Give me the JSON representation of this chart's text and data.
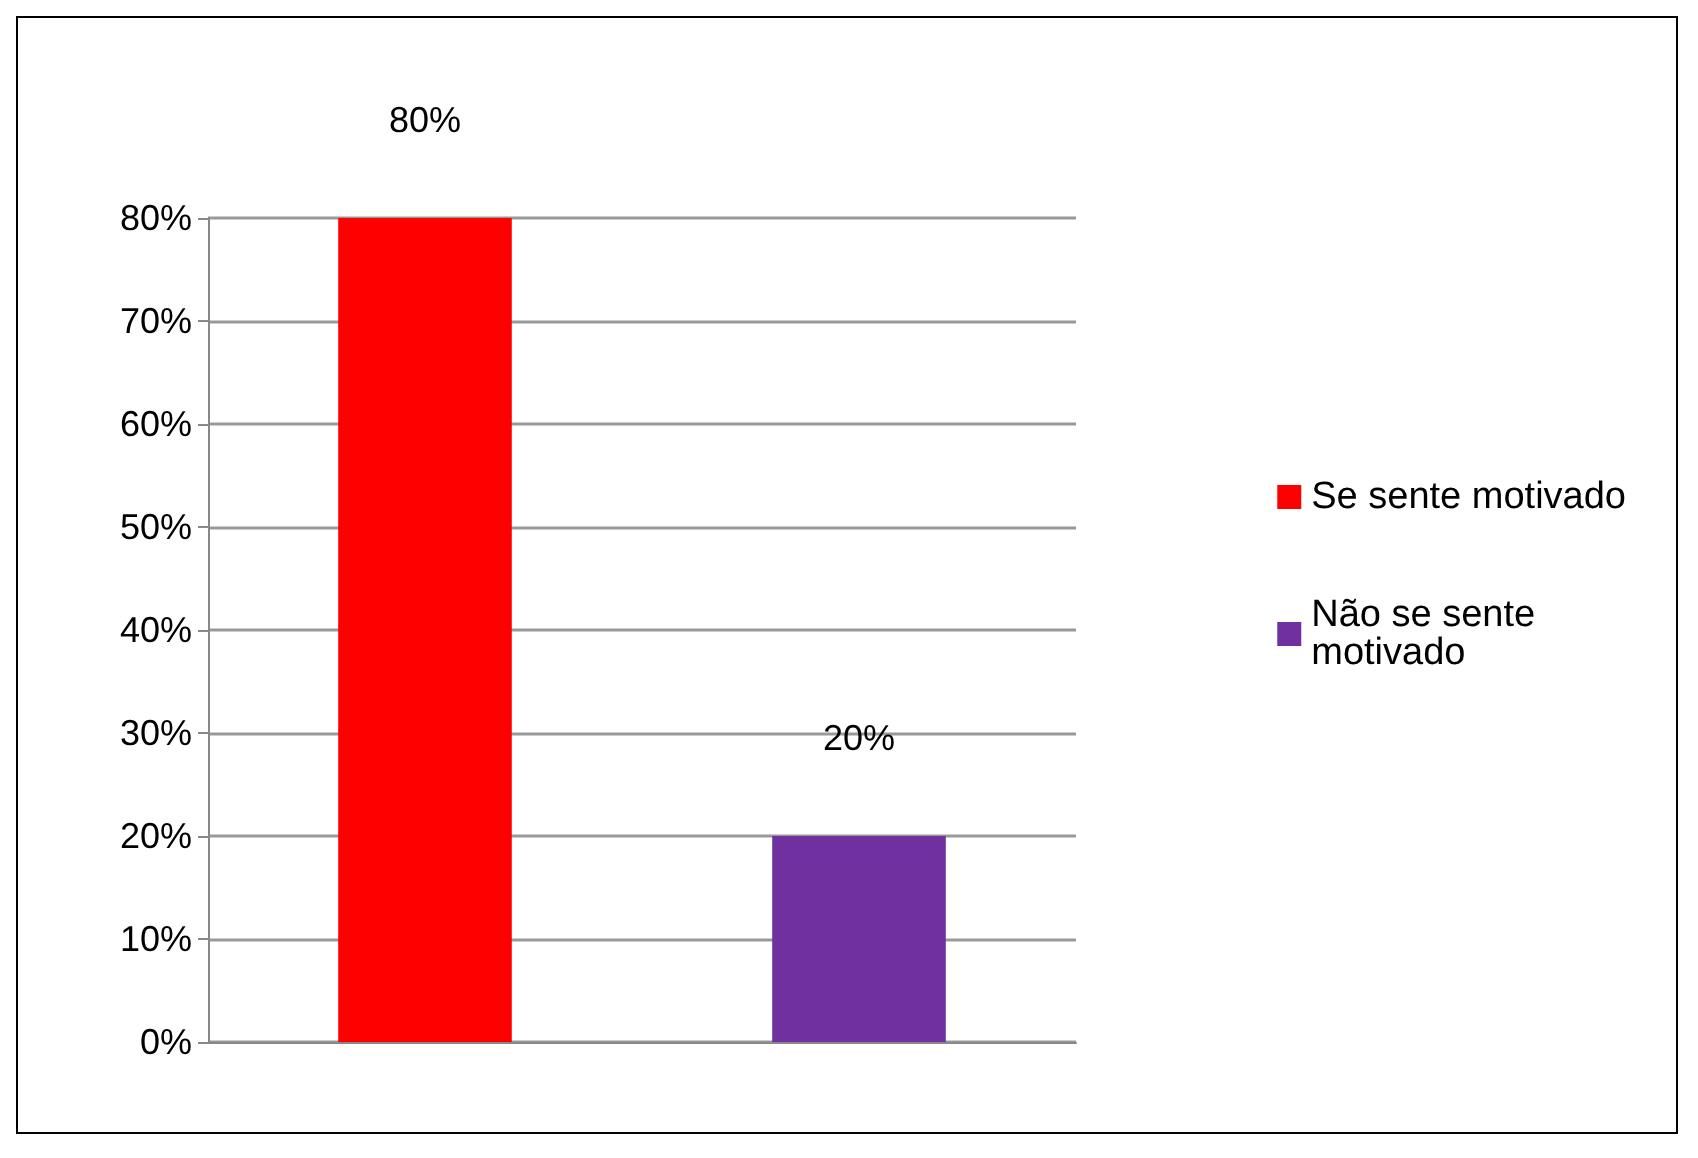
{
  "chart_data": {
    "type": "bar",
    "categories": [
      null,
      null
    ],
    "stacked": true,
    "series": [
      {
        "name": "Se sente motivado",
        "color": "#ff0000",
        "values": [
          80,
          null
        ],
        "value_labels": [
          "80%",
          null
        ]
      },
      {
        "name": "Não se sente motivado",
        "color": "#7030a0",
        "values": [
          null,
          20
        ],
        "value_labels": [
          null,
          "20%"
        ]
      }
    ],
    "ylim": [
      0,
      80
    ],
    "yticks": [
      {
        "value": 0,
        "label": "0%"
      },
      {
        "value": 10,
        "label": "10%"
      },
      {
        "value": 20,
        "label": "20%"
      },
      {
        "value": 30,
        "label": "30%"
      },
      {
        "value": 40,
        "label": "40%"
      },
      {
        "value": 50,
        "label": "50%"
      },
      {
        "value": 60,
        "label": "60%"
      },
      {
        "value": 70,
        "label": "70%"
      },
      {
        "value": 80,
        "label": "80%"
      }
    ],
    "grid": "y",
    "legend": "right"
  }
}
